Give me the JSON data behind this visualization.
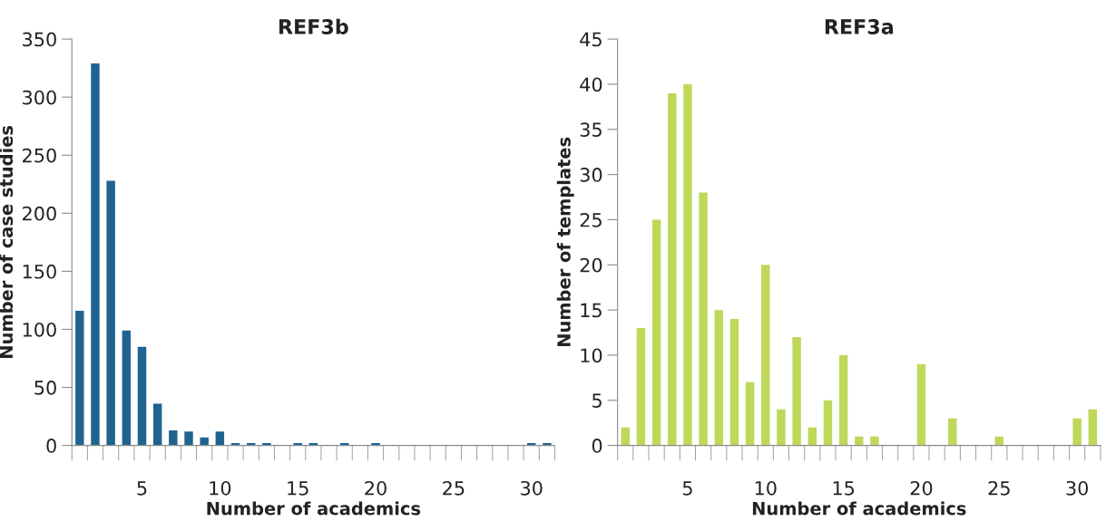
{
  "chart_data": [
    {
      "type": "bar",
      "title": "REF3b",
      "xlabel": "Number of academics",
      "ylabel": "Number of case studies",
      "x": [
        1,
        2,
        3,
        4,
        5,
        6,
        7,
        8,
        9,
        10,
        11,
        12,
        13,
        14,
        15,
        16,
        17,
        18,
        19,
        20,
        21,
        22,
        23,
        24,
        25,
        26,
        27,
        28,
        29,
        30,
        31
      ],
      "values": [
        116,
        329,
        228,
        99,
        85,
        36,
        13,
        12,
        7,
        12,
        2,
        2,
        2,
        0,
        2,
        2,
        0,
        2,
        0,
        2,
        0,
        0,
        0,
        0,
        0,
        0,
        0,
        0,
        0,
        2,
        2
      ],
      "color": "#1f6491",
      "ylim": [
        0,
        350
      ],
      "yticks": [
        0,
        50,
        100,
        150,
        200,
        250,
        300,
        350
      ],
      "xlim": [
        0.5,
        31.5
      ],
      "xticks": [
        5,
        10,
        15,
        20,
        25,
        30
      ],
      "grid": false,
      "legend": false
    },
    {
      "type": "bar",
      "title": "REF3a",
      "xlabel": "Number of academics",
      "ylabel": "Number of templates",
      "x": [
        1,
        2,
        3,
        4,
        5,
        6,
        7,
        8,
        9,
        10,
        11,
        12,
        13,
        14,
        15,
        16,
        17,
        18,
        19,
        20,
        21,
        22,
        23,
        24,
        25,
        26,
        27,
        28,
        29,
        30,
        31
      ],
      "values": [
        2,
        13,
        25,
        39,
        40,
        28,
        15,
        14,
        7,
        20,
        4,
        12,
        2,
        5,
        10,
        1,
        1,
        0,
        0,
        9,
        0,
        3,
        0,
        0,
        1,
        0,
        0,
        0,
        0,
        3,
        4
      ],
      "color": "#bed85a",
      "ylim": [
        0,
        45
      ],
      "yticks": [
        0,
        5,
        10,
        15,
        20,
        25,
        30,
        35,
        40,
        45
      ],
      "xlim": [
        0.5,
        31.5
      ],
      "xticks": [
        5,
        10,
        15,
        20,
        25,
        30
      ],
      "grid": false,
      "legend": false
    }
  ]
}
